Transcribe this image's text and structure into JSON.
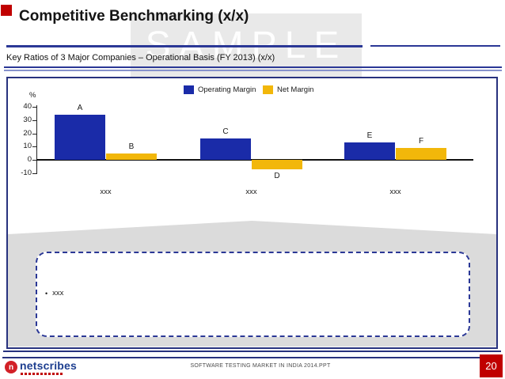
{
  "slide": {
    "title": "Competitive Benchmarking (x/x)",
    "subtitle": "Key Ratios of 3 Major Companies – Operational Basis (FY 2013) (x/x)",
    "watermark": "SAMPLE"
  },
  "note_box": {
    "bullet_glyph": "•",
    "bullet_text": "xxx"
  },
  "footer": {
    "logo_text": "netscribes",
    "logo_mark_letter": "n",
    "document_name": "SOFTWARE TESTING MARKET IN INDIA 2014.PPT",
    "page_number": "20"
  },
  "colors": {
    "accent_navy": "#2b3896",
    "box_border_navy": "#28327e",
    "band_gray": "#dbdbdb",
    "page_red": "#c00000",
    "operating_margin_blue": "#1a2ba8",
    "net_margin_yellow": "#f2b70a"
  },
  "chart_data": {
    "type": "bar",
    "categories": [
      "xxx",
      "xxx",
      "xxx"
    ],
    "series": [
      {
        "name": "Operating Margin",
        "color": "#1a2ba8",
        "values": [
          34,
          16,
          13
        ],
        "bar_labels": [
          "A",
          "C",
          "E"
        ]
      },
      {
        "name": "Net Margin",
        "color": "#f2b70a",
        "values": [
          5,
          -7,
          9
        ],
        "bar_labels": [
          "B",
          "D",
          "F"
        ]
      }
    ],
    "ylabel": "%",
    "yticks": [
      40,
      30,
      20,
      10,
      0,
      -10
    ],
    "ylim": [
      -10,
      40
    ],
    "legend_position": "top-center",
    "grid": false
  }
}
